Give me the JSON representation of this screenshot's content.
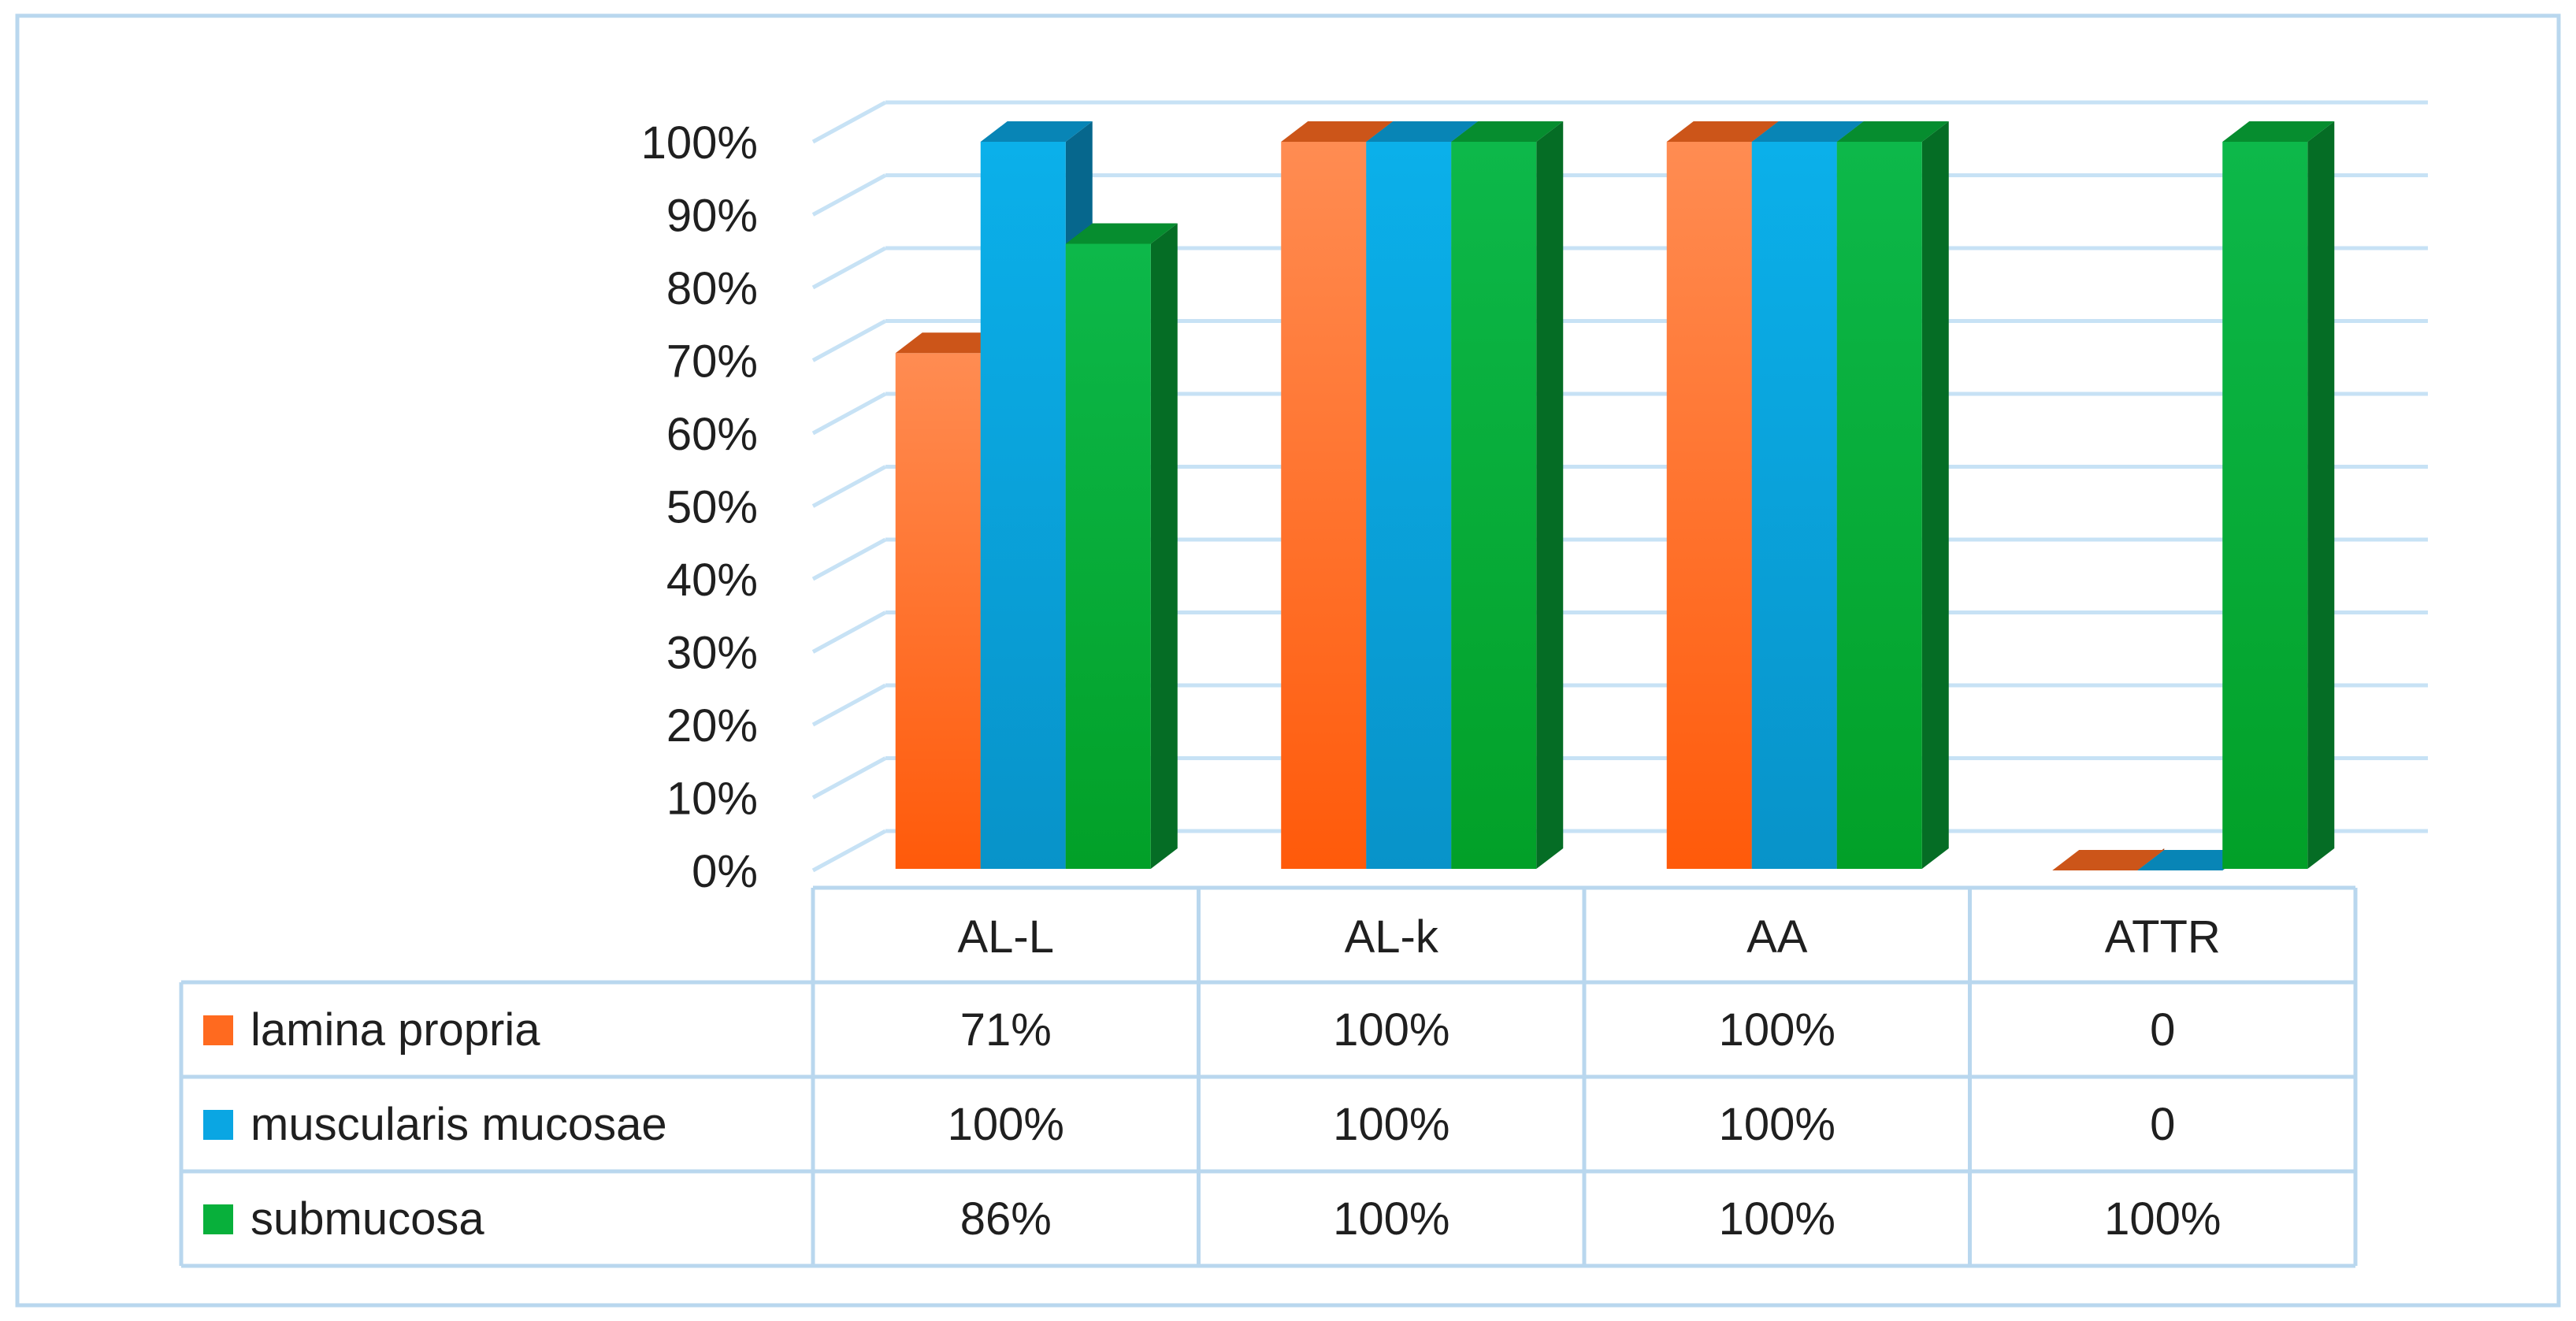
{
  "chart_data": {
    "type": "bar",
    "style": "3d-clustered-column-with-data-table",
    "categories": [
      "AL-L",
      "AL-k",
      "AA",
      "ATTR"
    ],
    "y_ticks": [
      "0%",
      "10%",
      "20%",
      "30%",
      "40%",
      "50%",
      "60%",
      "70%",
      "80%",
      "90%",
      "100%"
    ],
    "ylim": [
      0,
      100
    ],
    "grid": true,
    "series": [
      {
        "name": "lamina propria",
        "values": [
          71,
          100,
          100,
          0
        ],
        "table_values": [
          "71%",
          "100%",
          "100%",
          "0"
        ],
        "color": "#ff6a1f"
      },
      {
        "name": "muscularis mucosae",
        "values": [
          100,
          100,
          100,
          0
        ],
        "table_values": [
          "100%",
          "100%",
          "100%",
          "0"
        ],
        "color": "#0aa6e3"
      },
      {
        "name": "submucosa",
        "values": [
          86,
          100,
          100,
          100
        ],
        "table_values": [
          "86%",
          "100%",
          "100%",
          "100%"
        ],
        "color": "#08b03b"
      }
    ],
    "colors": {
      "frame": "#b9d7ee",
      "grid": "#c7e2f5",
      "table_border": "#b9d7ee"
    }
  }
}
